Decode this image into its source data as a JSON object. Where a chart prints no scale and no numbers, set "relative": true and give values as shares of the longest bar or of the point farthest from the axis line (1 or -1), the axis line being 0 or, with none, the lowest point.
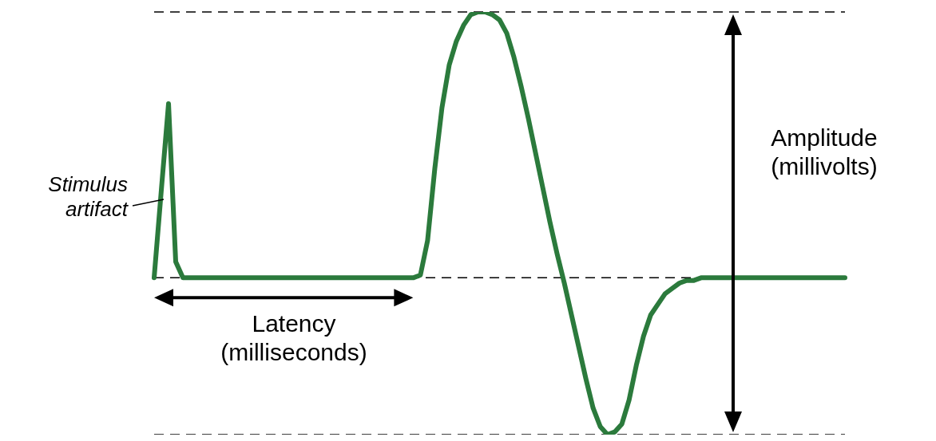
{
  "chart_data": {
    "type": "line",
    "relative": true,
    "categories": [
      null,
      null,
      null,
      null,
      null,
      null,
      null,
      null,
      null,
      null,
      null,
      null,
      null,
      null,
      null,
      null,
      null,
      null,
      null,
      null,
      null,
      null,
      null,
      null,
      null,
      null,
      null,
      null,
      null,
      null,
      null,
      null,
      null,
      null,
      null,
      null,
      null,
      null,
      null,
      null,
      null,
      null,
      null,
      null,
      null,
      null,
      null,
      null,
      null,
      null,
      null,
      null,
      null,
      null,
      null,
      null,
      null,
      null,
      null,
      null,
      null,
      null,
      null,
      null,
      null,
      null,
      null,
      null,
      null,
      null,
      null,
      null,
      null,
      null,
      null,
      null,
      null,
      null,
      null,
      null,
      null,
      null,
      null,
      null,
      null,
      null,
      null,
      null,
      null,
      null,
      null,
      null,
      null,
      null,
      null,
      null,
      null
    ],
    "series": [
      {
        "color": "#2b7a3c",
        "values": [
          0,
          0.33,
          0.655,
          0.06,
          0,
          0,
          0,
          0,
          0,
          0,
          0,
          0,
          0,
          0,
          0,
          0,
          0,
          0,
          0,
          0,
          0,
          0,
          0,
          0,
          0,
          0,
          0,
          0,
          0,
          0,
          0,
          0,
          0,
          0,
          0,
          0,
          0,
          0.01,
          0.14,
          0.41,
          0.64,
          0.8,
          0.89,
          0.95,
          0.99,
          1,
          1,
          0.99,
          0.97,
          0.92,
          0.83,
          0.72,
          0.6,
          0.47,
          0.34,
          0.21,
          0.09,
          -0.02,
          -0.14,
          -0.26,
          -0.38,
          -0.49,
          -0.56,
          -0.59,
          -0.58,
          -0.55,
          -0.46,
          -0.33,
          -0.22,
          -0.14,
          -0.1,
          -0.06,
          -0.04,
          -0.02,
          -0.01,
          -0.01,
          0,
          0,
          0,
          0,
          0,
          0,
          0,
          0,
          0,
          0,
          0,
          0,
          0,
          0,
          0,
          0,
          0,
          0,
          0,
          0,
          0
        ]
      }
    ],
    "ref_lines": [
      {
        "axis": "y",
        "value": 0,
        "line_style": "dashed",
        "color": "#000000"
      },
      {
        "axis": "y",
        "value": 1,
        "line_style": "dashed",
        "color": "#000000"
      },
      {
        "axis": "y",
        "value": -0.59,
        "line_style": "dashed",
        "color": "#000000"
      }
    ],
    "annotations": [
      "Stimulus\nartifact",
      "Latency\n(milliseconds)",
      "Amplitude\n(millivolts)"
    ]
  }
}
